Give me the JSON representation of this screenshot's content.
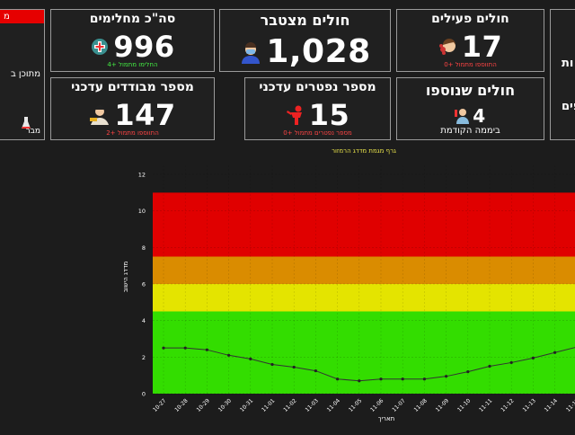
{
  "cards": {
    "active": {
      "title": "חולים פעילים",
      "value": "17",
      "sub": "התווספו מתמול +0"
    },
    "cumulative": {
      "title": "חולים מצטבר",
      "value": "1,028"
    },
    "recovered": {
      "title": "סה\"כ מחלימים",
      "value": "996",
      "sub": "החלימו מתמול +4"
    },
    "new_cases": {
      "title": "חולים שנוספו",
      "value": "4",
      "sub": "ביממה הקודמת"
    },
    "deaths": {
      "title": "מספר נפטרים עדכני",
      "value": "15",
      "sub": "מספר נפטרים מתמול +0"
    },
    "isolated": {
      "title": "מספר מבודדים עדכני",
      "value": "147",
      "sub": "התווספו מתמול +2"
    }
  },
  "edge_left": {
    "bar_text": "מ",
    "line1": "מתוכן ב",
    "line2": "מבר"
  },
  "edge_right": {
    "line1": "ות",
    "line2": "פים"
  },
  "colors": {
    "red_zone": "#e00000",
    "orange_zone": "#da8c00",
    "yellow_zone": "#e4e400",
    "green_zone": "#33dd00"
  },
  "chart_data": {
    "type": "line",
    "title": "גרף מגמת מדדג הרמזור",
    "xlabel": "תאריך",
    "ylabel": "מדדג הישוב",
    "ylim": [
      0,
      12
    ],
    "yticks": [
      0,
      2,
      4,
      6,
      8,
      10,
      12
    ],
    "bands": [
      {
        "from": 0,
        "to": 4.5,
        "color": "#33dd00"
      },
      {
        "from": 4.5,
        "to": 6,
        "color": "#e4e400"
      },
      {
        "from": 6,
        "to": 7.5,
        "color": "#da8c00"
      },
      {
        "from": 7.5,
        "to": 11,
        "color": "#e00000"
      }
    ],
    "x": [
      "10-27",
      "10-28",
      "10-29",
      "10-30",
      "10-31",
      "11-01",
      "11-02",
      "11-03",
      "11-04",
      "11-05",
      "11-06",
      "11-07",
      "11-08",
      "11-09",
      "11-10",
      "11-11",
      "11-12",
      "11-13",
      "11-14",
      "11-15"
    ],
    "values": [
      2.5,
      2.5,
      2.4,
      2.1,
      1.9,
      1.6,
      1.45,
      1.25,
      0.8,
      0.7,
      0.8,
      0.8,
      0.8,
      0.95,
      1.2,
      1.5,
      1.7,
      1.95,
      2.25,
      2.55
    ]
  }
}
